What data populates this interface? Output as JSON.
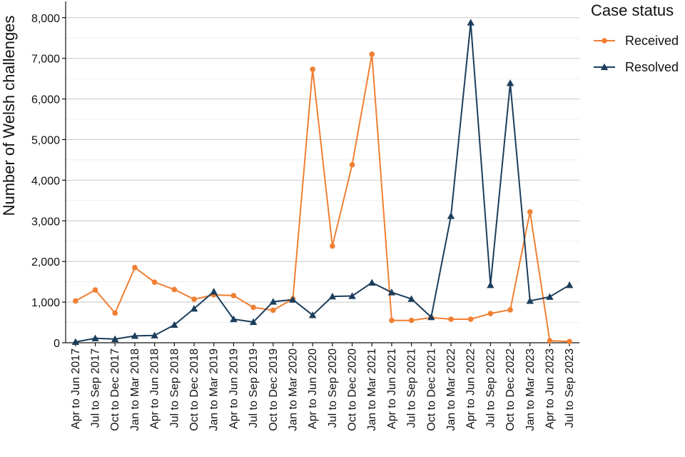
{
  "chart_data": {
    "type": "line",
    "ylabel": "Number of Welsh challenges",
    "ylim": [
      0,
      8400
    ],
    "yticks": [
      0,
      1000,
      2000,
      3000,
      4000,
      5000,
      6000,
      7000,
      8000
    ],
    "ytick_labels": [
      "0",
      "1,000",
      "2,000",
      "3,000",
      "4,000",
      "5,000",
      "6,000",
      "7,000",
      "8,000"
    ],
    "grid": "horizontal",
    "legend_placement": "top-right",
    "legend_title": "Case status",
    "categories": [
      "Apr to Jun 2017",
      "Jul to Sep 2017",
      "Oct to Dec 2017",
      "Jan to Mar 2018",
      "Apr to Jun 2018",
      "Jul to Sep 2018",
      "Oct to Dec 2018",
      "Jan to Mar 2019",
      "Apr to Jun 2019",
      "Jul to Sep 2019",
      "Oct to Dec 2019",
      "Jan to Mar 2020",
      "Apr to Jun 2020",
      "Jul to Sep 2020",
      "Oct to Dec 2020",
      "Jan to Mar 2021",
      "Apr to Jun 2021",
      "Jul to Sep 2021",
      "Oct to Dec 2021",
      "Jan to Mar 2022",
      "Apr to Jun 2022",
      "Jul to Sep 2022",
      "Oct to Dec 2022",
      "Jan to Mar 2023",
      "Apr to Jun 2023",
      "Jul to Sep 2023"
    ],
    "series": [
      {
        "name": "Received",
        "color": "#f07f32",
        "marker": "circle",
        "values": [
          1030,
          1300,
          730,
          1850,
          1490,
          1310,
          1070,
          1180,
          1160,
          870,
          800,
          1080,
          6730,
          2380,
          4380,
          7100,
          550,
          550,
          620,
          580,
          580,
          720,
          810,
          3220,
          50,
          30
        ]
      },
      {
        "name": "Resolved",
        "color": "#1c3e5c",
        "marker": "triangle",
        "values": [
          20,
          110,
          90,
          170,
          180,
          440,
          840,
          1260,
          580,
          510,
          1010,
          1060,
          680,
          1140,
          1150,
          1480,
          1240,
          1080,
          630,
          3120,
          7880,
          1420,
          6390,
          1030,
          1130,
          1420
        ]
      }
    ]
  }
}
